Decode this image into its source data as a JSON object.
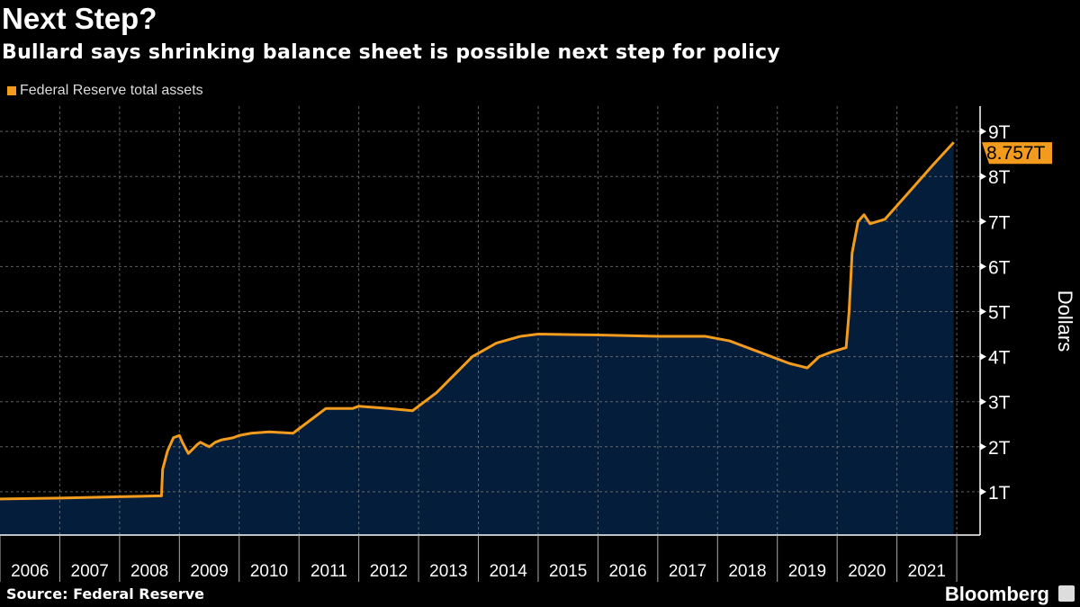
{
  "header": {
    "title": "Next Step?",
    "subtitle": "Bullard says shrinking balance sheet is possible next step for policy"
  },
  "footer": {
    "source": "Source: Federal Reserve",
    "brand": "Bloomberg"
  },
  "colors": {
    "line": "#f29b1d",
    "area": "#031d3b",
    "background": "#000000"
  },
  "chart_data": {
    "type": "area",
    "title": "Next Step?",
    "subtitle": "Bullard says shrinking balance sheet is possible next step for policy",
    "series": [
      {
        "name": "Federal Reserve total assets",
        "x": [
          2006.0,
          2007.0,
          2008.0,
          2008.7,
          2008.72,
          2008.8,
          2008.9,
          2009.0,
          2009.05,
          2009.15,
          2009.3,
          2009.35,
          2009.5,
          2009.6,
          2009.7,
          2009.9,
          2010.0,
          2010.2,
          2010.5,
          2010.9,
          2011.0,
          2011.2,
          2011.45,
          2011.9,
          2012.0,
          2012.5,
          2012.9,
          2013.0,
          2013.3,
          2013.9,
          2014.3,
          2014.7,
          2015.0,
          2016.0,
          2017.0,
          2017.8,
          2018.2,
          2018.7,
          2019.2,
          2019.5,
          2019.7,
          2019.9,
          2020.15,
          2020.2,
          2020.25,
          2020.35,
          2020.45,
          2020.55,
          2020.8,
          2021.0,
          2021.3,
          2021.6,
          2021.95
        ],
        "y": [
          0.84,
          0.86,
          0.89,
          0.91,
          1.5,
          1.9,
          2.2,
          2.25,
          2.1,
          1.85,
          2.05,
          2.1,
          2.0,
          2.1,
          2.15,
          2.2,
          2.25,
          2.3,
          2.33,
          2.3,
          2.4,
          2.6,
          2.85,
          2.85,
          2.9,
          2.85,
          2.8,
          2.9,
          3.2,
          4.0,
          4.3,
          4.45,
          4.5,
          4.48,
          4.45,
          4.45,
          4.35,
          4.1,
          3.85,
          3.75,
          4.0,
          4.1,
          4.2,
          5.0,
          6.3,
          7.0,
          7.15,
          6.95,
          7.05,
          7.35,
          7.8,
          8.25,
          8.757
        ]
      }
    ],
    "last_value_label": "8.757T",
    "x_ticks": [
      "2006",
      "2007",
      "2008",
      "2009",
      "2010",
      "2011",
      "2012",
      "2013",
      "2014",
      "2015",
      "2016",
      "2017",
      "2018",
      "2019",
      "2020",
      "2021"
    ],
    "y_ticks": [
      "1T",
      "2T",
      "3T",
      "4T",
      "5T",
      "6T",
      "7T",
      "8T",
      "9T"
    ],
    "y_tick_values": [
      1,
      2,
      3,
      4,
      5,
      6,
      7,
      8,
      9
    ],
    "ylabel": "Dollars",
    "xlim": [
      2006,
      2022
    ],
    "ylim": [
      0,
      9.4
    ],
    "grid": true,
    "legend": "top-left",
    "y_axis_side": "right"
  }
}
